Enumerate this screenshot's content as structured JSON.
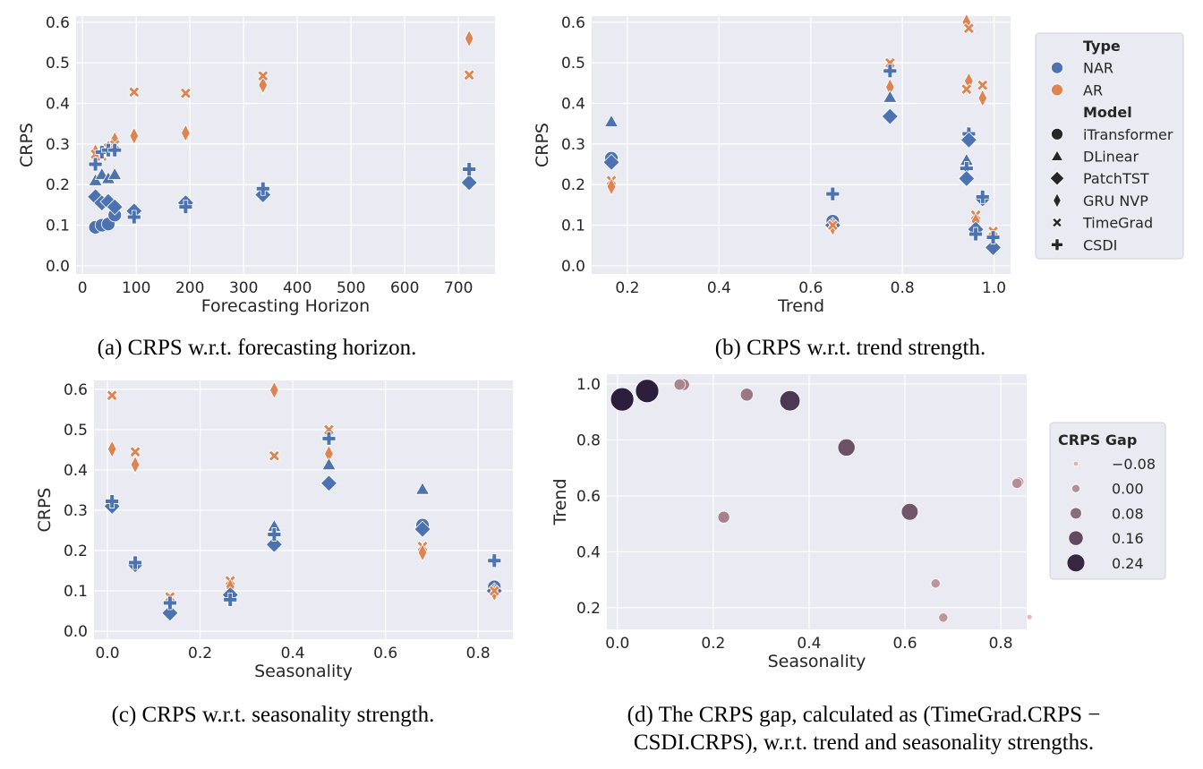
{
  "colors": {
    "NAR": "#4c72b0",
    "AR": "#dd8452",
    "background": "#eaeaf2",
    "grid": "#ffffff",
    "gap_light": "#e9b9b6",
    "gap_dark": "#2d1e3e"
  },
  "legend_type_model": {
    "type_title": "Type",
    "types": [
      "NAR",
      "AR"
    ],
    "model_title": "Model",
    "models": [
      {
        "name": "iTransformer",
        "marker": "circle"
      },
      {
        "name": "DLinear",
        "marker": "triangle"
      },
      {
        "name": "PatchTST",
        "marker": "diamond"
      },
      {
        "name": "GRU NVP",
        "marker": "thin_diamond"
      },
      {
        "name": "TimeGrad",
        "marker": "x"
      },
      {
        "name": "CSDI",
        "marker": "plus"
      }
    ]
  },
  "legend_gap": {
    "title": "CRPS Gap",
    "levels": [
      "−0.08",
      "0.00",
      "0.08",
      "0.16",
      "0.24"
    ],
    "values": [
      -0.08,
      0,
      0.08,
      0.16,
      0.24
    ]
  },
  "captions": {
    "a": "(a) CRPS w.r.t. forecasting horizon.",
    "b": "(b) CRPS w.r.t. trend strength.",
    "c": "(c) CRPS w.r.t. seasonality strength.",
    "d1": "(d) The CRPS gap, calculated as (TimeGrad.CRPS −",
    "d2": "CSDI.CRPS), w.r.t. trend and seasonality strengths."
  },
  "chart_data": [
    {
      "type": "scatter",
      "id": "a",
      "xlabel": "Forecasting Horizon",
      "ylabel": "CRPS",
      "xlim": [
        -12,
        768
      ],
      "ylim": [
        -0.02,
        0.615
      ],
      "grid": true,
      "xticks": [
        0,
        100,
        200,
        300,
        400,
        500,
        600,
        700
      ],
      "xticklabels": [
        "0",
        "100",
        "200",
        "300",
        "400",
        "500",
        "600",
        "700"
      ],
      "yticks": [
        0,
        0.1,
        0.2,
        0.3,
        0.4,
        0.5,
        0.6
      ],
      "yticklabels": [
        "0.0",
        "0.1",
        "0.2",
        "0.3",
        "0.4",
        "0.5",
        "0.6"
      ],
      "points": [
        {
          "model": "iTransformer",
          "type": "NAR",
          "x": 24,
          "y": 0.095
        },
        {
          "model": "iTransformer",
          "type": "NAR",
          "x": 36,
          "y": 0.1
        },
        {
          "model": "iTransformer",
          "type": "NAR",
          "x": 48,
          "y": 0.103
        },
        {
          "model": "iTransformer",
          "type": "NAR",
          "x": 60,
          "y": 0.125
        },
        {
          "model": "DLinear",
          "type": "NAR",
          "x": 24,
          "y": 0.21
        },
        {
          "model": "DLinear",
          "type": "NAR",
          "x": 36,
          "y": 0.225
        },
        {
          "model": "DLinear",
          "type": "NAR",
          "x": 48,
          "y": 0.215
        },
        {
          "model": "DLinear",
          "type": "NAR",
          "x": 60,
          "y": 0.225
        },
        {
          "model": "PatchTST",
          "type": "NAR",
          "x": 24,
          "y": 0.17
        },
        {
          "model": "PatchTST",
          "type": "NAR",
          "x": 36,
          "y": 0.155
        },
        {
          "model": "PatchTST",
          "type": "NAR",
          "x": 48,
          "y": 0.158
        },
        {
          "model": "PatchTST",
          "type": "NAR",
          "x": 60,
          "y": 0.145
        },
        {
          "model": "PatchTST",
          "type": "NAR",
          "x": 96,
          "y": 0.135
        },
        {
          "model": "PatchTST",
          "type": "NAR",
          "x": 192,
          "y": 0.155
        },
        {
          "model": "PatchTST",
          "type": "NAR",
          "x": 336,
          "y": 0.175
        },
        {
          "model": "PatchTST",
          "type": "NAR",
          "x": 720,
          "y": 0.205
        },
        {
          "model": "GRU NVP",
          "type": "AR",
          "x": 24,
          "y": 0.28
        },
        {
          "model": "GRU NVP",
          "type": "AR",
          "x": 48,
          "y": 0.29
        },
        {
          "model": "GRU NVP",
          "type": "AR",
          "x": 60,
          "y": 0.31
        },
        {
          "model": "GRU NVP",
          "type": "AR",
          "x": 96,
          "y": 0.32
        },
        {
          "model": "GRU NVP",
          "type": "AR",
          "x": 192,
          "y": 0.327
        },
        {
          "model": "GRU NVP",
          "type": "AR",
          "x": 336,
          "y": 0.445
        },
        {
          "model": "GRU NVP",
          "type": "AR",
          "x": 720,
          "y": 0.56
        },
        {
          "model": "TimeGrad",
          "type": "AR",
          "x": 24,
          "y": 0.275
        },
        {
          "model": "TimeGrad",
          "type": "AR",
          "x": 36,
          "y": 0.27
        },
        {
          "model": "TimeGrad",
          "type": "AR",
          "x": 48,
          "y": 0.29
        },
        {
          "model": "TimeGrad",
          "type": "AR",
          "x": 60,
          "y": 0.298
        },
        {
          "model": "TimeGrad",
          "type": "AR",
          "x": 96,
          "y": 0.428
        },
        {
          "model": "TimeGrad",
          "type": "AR",
          "x": 192,
          "y": 0.425
        },
        {
          "model": "TimeGrad",
          "type": "AR",
          "x": 336,
          "y": 0.468
        },
        {
          "model": "TimeGrad",
          "type": "AR",
          "x": 720,
          "y": 0.47
        },
        {
          "model": "CSDI",
          "type": "NAR",
          "x": 24,
          "y": 0.25
        },
        {
          "model": "CSDI",
          "type": "NAR",
          "x": 36,
          "y": 0.28
        },
        {
          "model": "CSDI",
          "type": "NAR",
          "x": 48,
          "y": 0.285
        },
        {
          "model": "CSDI",
          "type": "NAR",
          "x": 60,
          "y": 0.285
        },
        {
          "model": "CSDI",
          "type": "NAR",
          "x": 96,
          "y": 0.12
        },
        {
          "model": "CSDI",
          "type": "NAR",
          "x": 192,
          "y": 0.145
        },
        {
          "model": "CSDI",
          "type": "NAR",
          "x": 336,
          "y": 0.19
        },
        {
          "model": "CSDI",
          "type": "NAR",
          "x": 720,
          "y": 0.238
        }
      ]
    },
    {
      "type": "scatter",
      "id": "b",
      "xlabel": "Trend",
      "ylabel": "CRPS",
      "xlim": [
        0.122,
        1.036
      ],
      "ylim": [
        -0.02,
        0.615
      ],
      "grid": true,
      "xticks": [
        0.2,
        0.4,
        0.6,
        0.8,
        1.0
      ],
      "xticklabels": [
        "0.2",
        "0.4",
        "0.6",
        "0.8",
        "1.0"
      ],
      "yticks": [
        0,
        0.1,
        0.2,
        0.3,
        0.4,
        0.5,
        0.6
      ],
      "yticklabels": [
        "0.0",
        "0.1",
        "0.2",
        "0.3",
        "0.4",
        "0.5",
        "0.6"
      ],
      "points": [
        {
          "model": "DLinear",
          "type": "NAR",
          "x": 0.165,
          "y": 0.355
        },
        {
          "model": "iTransformer",
          "type": "NAR",
          "x": 0.165,
          "y": 0.265
        },
        {
          "model": "PatchTST",
          "type": "NAR",
          "x": 0.165,
          "y": 0.255
        },
        {
          "model": "TimeGrad",
          "type": "AR",
          "x": 0.165,
          "y": 0.21
        },
        {
          "model": "GRU NVP",
          "type": "AR",
          "x": 0.165,
          "y": 0.195
        },
        {
          "model": "CSDI",
          "type": "NAR",
          "x": 0.648,
          "y": 0.177
        },
        {
          "model": "iTransformer",
          "type": "NAR",
          "x": 0.648,
          "y": 0.11
        },
        {
          "model": "PatchTST",
          "type": "NAR",
          "x": 0.648,
          "y": 0.1
        },
        {
          "model": "GRU NVP",
          "type": "AR",
          "x": 0.648,
          "y": 0.095
        },
        {
          "model": "TimeGrad",
          "type": "AR",
          "x": 0.648,
          "y": 0.1
        },
        {
          "model": "TimeGrad",
          "type": "AR",
          "x": 0.773,
          "y": 0.5
        },
        {
          "model": "CSDI",
          "type": "NAR",
          "x": 0.773,
          "y": 0.48
        },
        {
          "model": "GRU NVP",
          "type": "AR",
          "x": 0.773,
          "y": 0.44
        },
        {
          "model": "DLinear",
          "type": "NAR",
          "x": 0.773,
          "y": 0.415
        },
        {
          "model": "PatchTST",
          "type": "NAR",
          "x": 0.773,
          "y": 0.368
        },
        {
          "model": "GRU NVP",
          "type": "AR",
          "x": 0.94,
          "y": 0.6
        },
        {
          "model": "TimeGrad",
          "type": "AR",
          "x": 0.945,
          "y": 0.585
        },
        {
          "model": "GRU NVP",
          "type": "AR",
          "x": 0.945,
          "y": 0.455
        },
        {
          "model": "TimeGrad",
          "type": "AR",
          "x": 0.94,
          "y": 0.435
        },
        {
          "model": "CSDI",
          "type": "NAR",
          "x": 0.945,
          "y": 0.325
        },
        {
          "model": "PatchTST",
          "type": "NAR",
          "x": 0.945,
          "y": 0.31
        },
        {
          "model": "DLinear",
          "type": "NAR",
          "x": 0.94,
          "y": 0.26
        },
        {
          "model": "CSDI",
          "type": "NAR",
          "x": 0.94,
          "y": 0.24
        },
        {
          "model": "PatchTST",
          "type": "NAR",
          "x": 0.94,
          "y": 0.215
        },
        {
          "model": "TimeGrad",
          "type": "AR",
          "x": 0.96,
          "y": 0.125
        },
        {
          "model": "GRU NVP",
          "type": "AR",
          "x": 0.96,
          "y": 0.11
        },
        {
          "model": "PatchTST",
          "type": "NAR",
          "x": 0.96,
          "y": 0.09
        },
        {
          "model": "CSDI",
          "type": "NAR",
          "x": 0.96,
          "y": 0.078
        },
        {
          "model": "TimeGrad",
          "type": "AR",
          "x": 0.975,
          "y": 0.445
        },
        {
          "model": "GRU NVP",
          "type": "AR",
          "x": 0.975,
          "y": 0.413
        },
        {
          "model": "PatchTST",
          "type": "NAR",
          "x": 0.975,
          "y": 0.165
        },
        {
          "model": "CSDI",
          "type": "NAR",
          "x": 0.975,
          "y": 0.17
        },
        {
          "model": "TimeGrad",
          "type": "AR",
          "x": 0.998,
          "y": 0.085
        },
        {
          "model": "PatchTST",
          "type": "NAR",
          "x": 0.998,
          "y": 0.045
        },
        {
          "model": "CSDI",
          "type": "NAR",
          "x": 0.998,
          "y": 0.07
        }
      ]
    },
    {
      "type": "scatter",
      "id": "c",
      "xlabel": "Seasonality",
      "ylabel": "CRPS",
      "xlim": [
        -0.029,
        0.875
      ],
      "ylim": [
        -0.02,
        0.622
      ],
      "grid": true,
      "xticks": [
        0,
        0.2,
        0.4,
        0.6,
        0.8
      ],
      "xticklabels": [
        "0.0",
        "0.2",
        "0.4",
        "0.6",
        "0.8"
      ],
      "yticks": [
        0,
        0.1,
        0.2,
        0.3,
        0.4,
        0.5,
        0.6
      ],
      "yticklabels": [
        "0.0",
        "0.1",
        "0.2",
        "0.3",
        "0.4",
        "0.5",
        "0.6"
      ],
      "points": [
        {
          "model": "TimeGrad",
          "type": "AR",
          "x": 0.01,
          "y": 0.585
        },
        {
          "model": "GRU NVP",
          "type": "AR",
          "x": 0.01,
          "y": 0.452
        },
        {
          "model": "PatchTST",
          "type": "NAR",
          "x": 0.01,
          "y": 0.31
        },
        {
          "model": "CSDI",
          "type": "NAR",
          "x": 0.01,
          "y": 0.322
        },
        {
          "model": "TimeGrad",
          "type": "AR",
          "x": 0.06,
          "y": 0.445
        },
        {
          "model": "GRU NVP",
          "type": "AR",
          "x": 0.06,
          "y": 0.413
        },
        {
          "model": "PatchTST",
          "type": "NAR",
          "x": 0.06,
          "y": 0.165
        },
        {
          "model": "CSDI",
          "type": "NAR",
          "x": 0.06,
          "y": 0.17
        },
        {
          "model": "TimeGrad",
          "type": "AR",
          "x": 0.135,
          "y": 0.085
        },
        {
          "model": "PatchTST",
          "type": "NAR",
          "x": 0.135,
          "y": 0.045
        },
        {
          "model": "CSDI",
          "type": "NAR",
          "x": 0.135,
          "y": 0.07
        },
        {
          "model": "TimeGrad",
          "type": "AR",
          "x": 0.265,
          "y": 0.125
        },
        {
          "model": "GRU NVP",
          "type": "AR",
          "x": 0.265,
          "y": 0.11
        },
        {
          "model": "PatchTST",
          "type": "NAR",
          "x": 0.265,
          "y": 0.09
        },
        {
          "model": "CSDI",
          "type": "NAR",
          "x": 0.265,
          "y": 0.078
        },
        {
          "model": "GRU NVP",
          "type": "AR",
          "x": 0.36,
          "y": 0.598
        },
        {
          "model": "TimeGrad",
          "type": "AR",
          "x": 0.36,
          "y": 0.435
        },
        {
          "model": "DLinear",
          "type": "NAR",
          "x": 0.36,
          "y": 0.26
        },
        {
          "model": "PatchTST",
          "type": "NAR",
          "x": 0.36,
          "y": 0.215
        },
        {
          "model": "CSDI",
          "type": "NAR",
          "x": 0.36,
          "y": 0.24
        },
        {
          "model": "TimeGrad",
          "type": "AR",
          "x": 0.478,
          "y": 0.5
        },
        {
          "model": "CSDI",
          "type": "NAR",
          "x": 0.478,
          "y": 0.478
        },
        {
          "model": "GRU NVP",
          "type": "AR",
          "x": 0.478,
          "y": 0.44
        },
        {
          "model": "DLinear",
          "type": "NAR",
          "x": 0.478,
          "y": 0.413
        },
        {
          "model": "PatchTST",
          "type": "NAR",
          "x": 0.478,
          "y": 0.367
        },
        {
          "model": "DLinear",
          "type": "NAR",
          "x": 0.68,
          "y": 0.352
        },
        {
          "model": "iTransformer",
          "type": "NAR",
          "x": 0.68,
          "y": 0.263
        },
        {
          "model": "PatchTST",
          "type": "NAR",
          "x": 0.68,
          "y": 0.253
        },
        {
          "model": "TimeGrad",
          "type": "AR",
          "x": 0.68,
          "y": 0.21
        },
        {
          "model": "GRU NVP",
          "type": "AR",
          "x": 0.68,
          "y": 0.195
        },
        {
          "model": "CSDI",
          "type": "NAR",
          "x": 0.835,
          "y": 0.175
        },
        {
          "model": "iTransformer",
          "type": "NAR",
          "x": 0.835,
          "y": 0.11
        },
        {
          "model": "PatchTST",
          "type": "NAR",
          "x": 0.835,
          "y": 0.1
        },
        {
          "model": "GRU NVP",
          "type": "AR",
          "x": 0.835,
          "y": 0.095
        },
        {
          "model": "TimeGrad",
          "type": "AR",
          "x": 0.835,
          "y": 0.1
        }
      ]
    },
    {
      "type": "scatter",
      "id": "d",
      "xlabel": "Seasonality",
      "ylabel": "Trend",
      "xlim": [
        -0.022,
        0.854
      ],
      "ylim": [
        0.123,
        1.035
      ],
      "grid": true,
      "xticks": [
        0,
        0.2,
        0.4,
        0.6,
        0.8
      ],
      "xticklabels": [
        "0.0",
        "0.2",
        "0.4",
        "0.6",
        "0.8"
      ],
      "yticks": [
        0.2,
        0.4,
        0.6,
        0.8,
        1.0
      ],
      "yticklabels": [
        "0.2",
        "0.4",
        "0.6",
        "0.8",
        "1.0"
      ],
      "size_hue": "CRPS Gap",
      "points": [
        {
          "x": 0.01,
          "y": 0.945,
          "gap": 0.26
        },
        {
          "x": 0.062,
          "y": 0.975,
          "gap": 0.26
        },
        {
          "x": 0.138,
          "y": 0.998,
          "gap": 0.03
        },
        {
          "x": 0.13,
          "y": 0.998,
          "gap": 0.02
        },
        {
          "x": 0.27,
          "y": 0.962,
          "gap": 0.05
        },
        {
          "x": 0.36,
          "y": 0.94,
          "gap": 0.2
        },
        {
          "x": 0.478,
          "y": 0.773,
          "gap": 0.14
        },
        {
          "x": 0.222,
          "y": 0.524,
          "gap": 0.03
        },
        {
          "x": 0.61,
          "y": 0.543,
          "gap": 0.13
        },
        {
          "x": 0.838,
          "y": 0.65,
          "gap": -0.01
        },
        {
          "x": 0.834,
          "y": 0.645,
          "gap": 0.0
        },
        {
          "x": 0.664,
          "y": 0.287,
          "gap": -0.02
        },
        {
          "x": 0.68,
          "y": 0.165,
          "gap": -0.02
        },
        {
          "x": 0.86,
          "y": 0.167,
          "gap": -0.1
        }
      ]
    }
  ]
}
